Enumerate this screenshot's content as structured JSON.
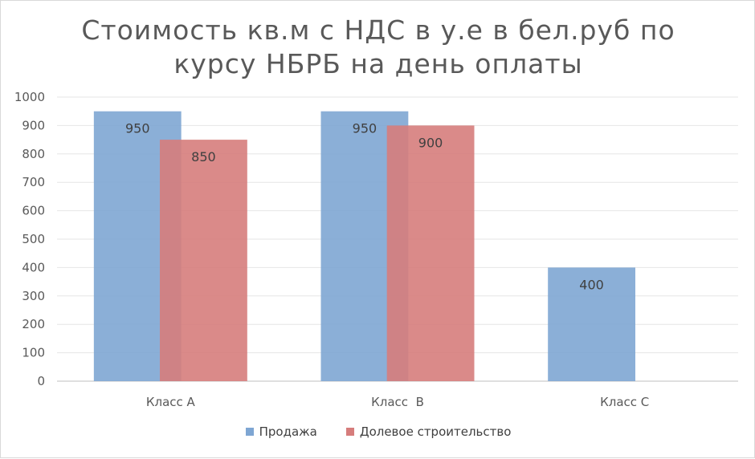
{
  "chart_data": {
    "type": "bar",
    "title": "Стоимость кв.м    с НДС в у.е в бел.руб по курсу НБРБ на день оплаты",
    "categories": [
      "Класс A",
      "Класс  B",
      "Класс C"
    ],
    "series": [
      {
        "name": "Продажа",
        "values": [
          950,
          950,
          400
        ],
        "color": "#7ea6d3"
      },
      {
        "name": "Долевое строительство",
        "values": [
          850,
          900,
          null
        ],
        "color": "#d67d7c"
      }
    ],
    "ylim": [
      0,
      1000
    ],
    "yticks": [
      0,
      100,
      200,
      300,
      400,
      500,
      600,
      700,
      800,
      900,
      1000
    ],
    "grid": true,
    "legend": "bottom"
  }
}
